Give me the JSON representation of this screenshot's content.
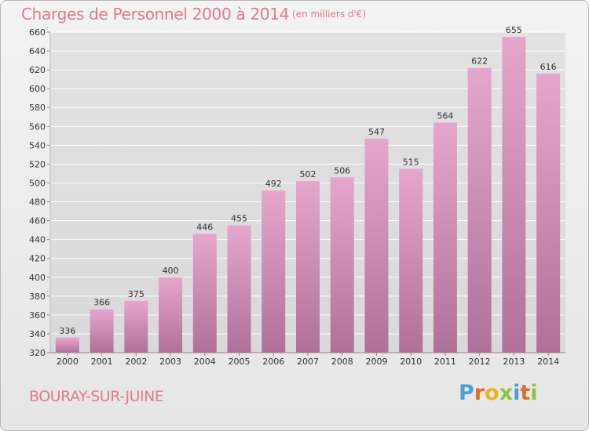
{
  "header": {
    "title": "Charges de Personnel 2000 à 2014",
    "unit": "(en milliers d'€)"
  },
  "footer": {
    "commune": "BOURAY-SUR-JUINE",
    "logo": "Proxiti"
  },
  "colors": {
    "bar": "#d38db3",
    "title": "#e07a8e",
    "grid": "#ffffff",
    "axis_text": "#333333"
  },
  "chart_data": {
    "type": "bar",
    "title": "Charges de Personnel 2000 à 2014",
    "subtitle": "(en milliers d'€)",
    "categories": [
      "2000",
      "2001",
      "2002",
      "2003",
      "2004",
      "2005",
      "2006",
      "2007",
      "2008",
      "2009",
      "2010",
      "2011",
      "2012",
      "2013",
      "2014"
    ],
    "values": [
      336,
      366,
      375,
      400,
      446,
      455,
      492,
      502,
      506,
      547,
      515,
      564,
      622,
      655,
      616
    ],
    "ylim": [
      320,
      660
    ],
    "yticks": [
      320,
      340,
      360,
      380,
      400,
      420,
      440,
      460,
      480,
      500,
      520,
      540,
      560,
      580,
      600,
      620,
      640,
      660
    ],
    "grid": true,
    "data_labels": true
  }
}
